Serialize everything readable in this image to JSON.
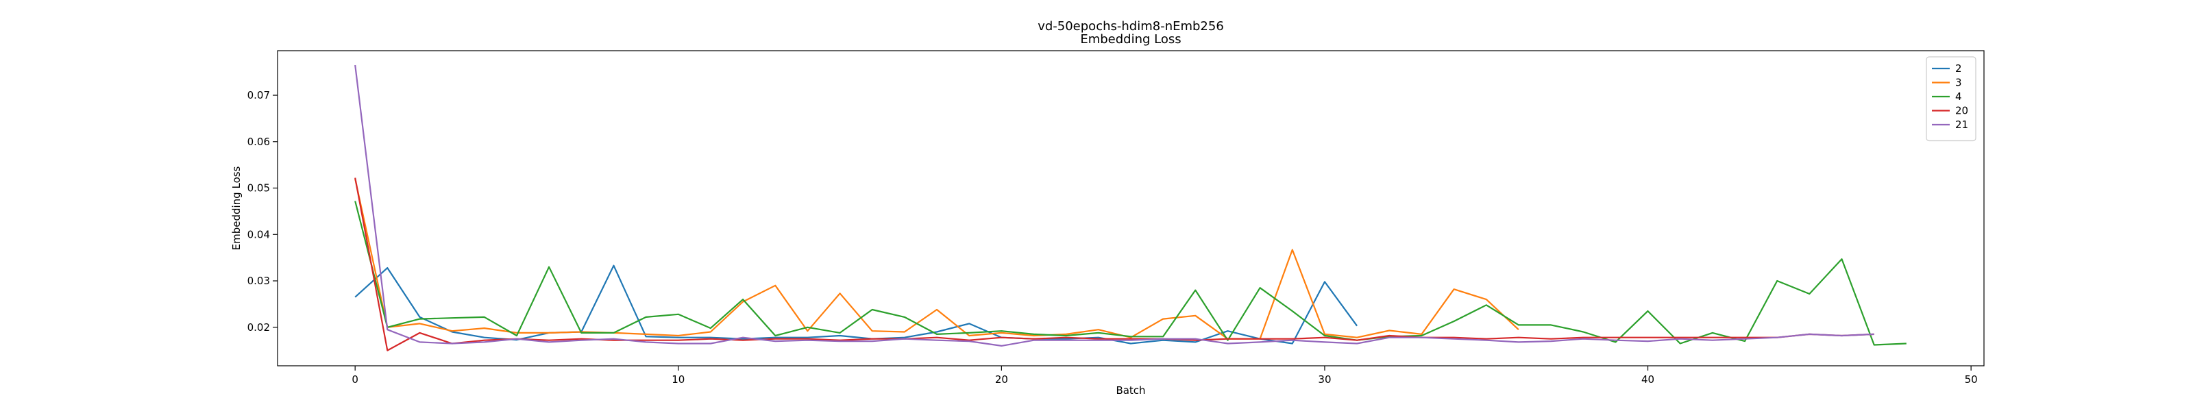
{
  "chart_data": {
    "type": "line",
    "title": "vd-50epochs-hdim8-nEmb256",
    "subtitle": "Embedding Loss",
    "xlabel": "Batch",
    "ylabel": "Embedding Loss",
    "xlim": [
      -2.4,
      50.4
    ],
    "ylim": [
      0.0117,
      0.0796
    ],
    "xticks": [
      0,
      10,
      20,
      30,
      40,
      50
    ],
    "yticks": [
      0.02,
      0.03,
      0.04,
      0.05,
      0.06,
      0.07
    ],
    "xtick_labels": [
      "0",
      "10",
      "20",
      "30",
      "40",
      "50"
    ],
    "ytick_labels": [
      "0.02",
      "0.03",
      "0.04",
      "0.05",
      "0.06",
      "0.07"
    ],
    "grid": false,
    "legend_position": "top-right",
    "series": [
      {
        "name": "2",
        "color": "#1f77b4",
        "x": [
          0,
          1,
          2,
          3,
          4,
          5,
          6,
          7,
          8,
          9,
          10,
          11,
          12,
          13,
          14,
          15,
          16,
          17,
          18,
          19,
          20,
          21,
          22,
          23,
          24,
          25,
          26,
          27,
          28,
          29,
          30,
          31
        ],
        "y": [
          0.0265,
          0.0328,
          0.0222,
          0.019,
          0.0178,
          0.0173,
          0.0188,
          0.019,
          0.0333,
          0.018,
          0.0178,
          0.0178,
          0.0175,
          0.0178,
          0.0178,
          0.0182,
          0.0175,
          0.0178,
          0.019,
          0.0208,
          0.0178,
          0.0175,
          0.0175,
          0.0178,
          0.0165,
          0.0172,
          0.0168,
          0.0192,
          0.0175,
          0.0165,
          0.0298,
          0.0203
        ]
      },
      {
        "name": "3",
        "color": "#ff7f0e",
        "x": [
          0,
          1,
          2,
          3,
          4,
          5,
          6,
          7,
          8,
          9,
          10,
          11,
          12,
          13,
          14,
          15,
          16,
          17,
          18,
          19,
          20,
          21,
          22,
          23,
          24,
          25,
          26,
          27,
          28,
          29,
          30,
          31,
          32,
          33,
          34,
          35,
          36
        ],
        "y": [
          0.052,
          0.02,
          0.0208,
          0.0192,
          0.0198,
          0.0188,
          0.0188,
          0.019,
          0.0188,
          0.0185,
          0.0182,
          0.019,
          0.0255,
          0.029,
          0.0192,
          0.0273,
          0.0192,
          0.019,
          0.0238,
          0.0182,
          0.0188,
          0.0182,
          0.0185,
          0.0195,
          0.0178,
          0.0218,
          0.0225,
          0.0175,
          0.0175,
          0.0367,
          0.0185,
          0.0178,
          0.0193,
          0.0185,
          0.0282,
          0.026,
          0.0195
        ]
      },
      {
        "name": "4",
        "color": "#2ca02c",
        "x": [
          0,
          1,
          2,
          3,
          4,
          5,
          6,
          7,
          8,
          9,
          10,
          11,
          12,
          13,
          14,
          15,
          16,
          17,
          18,
          19,
          20,
          21,
          22,
          23,
          24,
          25,
          26,
          27,
          28,
          29,
          30,
          31,
          32,
          33,
          34,
          35,
          36,
          37,
          38,
          39,
          40,
          41,
          42,
          43,
          44,
          45,
          46,
          47,
          48
        ],
        "y": [
          0.0472,
          0.02,
          0.0218,
          0.022,
          0.0222,
          0.0182,
          0.033,
          0.0188,
          0.0188,
          0.0222,
          0.0228,
          0.0198,
          0.026,
          0.0182,
          0.02,
          0.0188,
          0.0238,
          0.0222,
          0.0185,
          0.0188,
          0.0192,
          0.0185,
          0.0182,
          0.0188,
          0.018,
          0.018,
          0.028,
          0.0172,
          0.0285,
          0.0235,
          0.0182,
          0.0172,
          0.018,
          0.0182,
          0.0213,
          0.0248,
          0.0205,
          0.0205,
          0.019,
          0.0168,
          0.0235,
          0.0165,
          0.0188,
          0.017,
          0.03,
          0.0272,
          0.0347,
          0.0162,
          0.0165
        ]
      },
      {
        "name": "20",
        "color": "#d62728",
        "x": [
          0,
          1,
          2,
          3,
          4,
          5,
          6,
          7,
          8,
          9,
          10,
          11,
          12,
          13,
          14,
          15,
          16,
          17,
          18,
          19,
          20,
          21,
          22,
          23,
          24,
          25,
          26,
          27,
          28,
          29,
          30,
          31,
          32,
          33,
          34,
          35,
          36,
          37,
          38,
          39,
          40,
          41,
          42,
          43,
          44,
          45,
          46,
          47
        ],
        "y": [
          0.0522,
          0.015,
          0.0188,
          0.0165,
          0.0172,
          0.0175,
          0.0172,
          0.0175,
          0.0172,
          0.0172,
          0.0172,
          0.0175,
          0.0172,
          0.0175,
          0.0175,
          0.0172,
          0.0175,
          0.0175,
          0.0178,
          0.0172,
          0.0178,
          0.0175,
          0.0178,
          0.0175,
          0.0175,
          0.0175,
          0.0172,
          0.0175,
          0.0175,
          0.0175,
          0.0178,
          0.0172,
          0.0182,
          0.0178,
          0.0178,
          0.0175,
          0.0178,
          0.0175,
          0.0178,
          0.0178,
          0.0178,
          0.0178,
          0.0178,
          0.0178,
          0.0178,
          0.0185,
          0.0182,
          0.0185
        ]
      },
      {
        "name": "21",
        "color": "#9467bd",
        "x": [
          0,
          1,
          2,
          3,
          4,
          5,
          6,
          7,
          8,
          9,
          10,
          11,
          12,
          13,
          14,
          15,
          16,
          17,
          18,
          19,
          20,
          21,
          22,
          23,
          24,
          25,
          26,
          27,
          28,
          29,
          30,
          31,
          32,
          33,
          34,
          35,
          36,
          37,
          38,
          39,
          40,
          41,
          42,
          43,
          44,
          45,
          46,
          47
        ],
        "y": [
          0.0765,
          0.0195,
          0.0168,
          0.0165,
          0.0168,
          0.0175,
          0.0168,
          0.0172,
          0.0175,
          0.0168,
          0.0165,
          0.0165,
          0.0178,
          0.017,
          0.0172,
          0.017,
          0.017,
          0.0175,
          0.0172,
          0.017,
          0.016,
          0.0172,
          0.0172,
          0.0172,
          0.0172,
          0.0175,
          0.0175,
          0.0165,
          0.0168,
          0.0172,
          0.0168,
          0.0165,
          0.0178,
          0.0178,
          0.0175,
          0.0172,
          0.0168,
          0.017,
          0.0175,
          0.0172,
          0.017,
          0.0175,
          0.0172,
          0.0175,
          0.0178,
          0.0185,
          0.0182,
          0.0185
        ]
      }
    ]
  }
}
